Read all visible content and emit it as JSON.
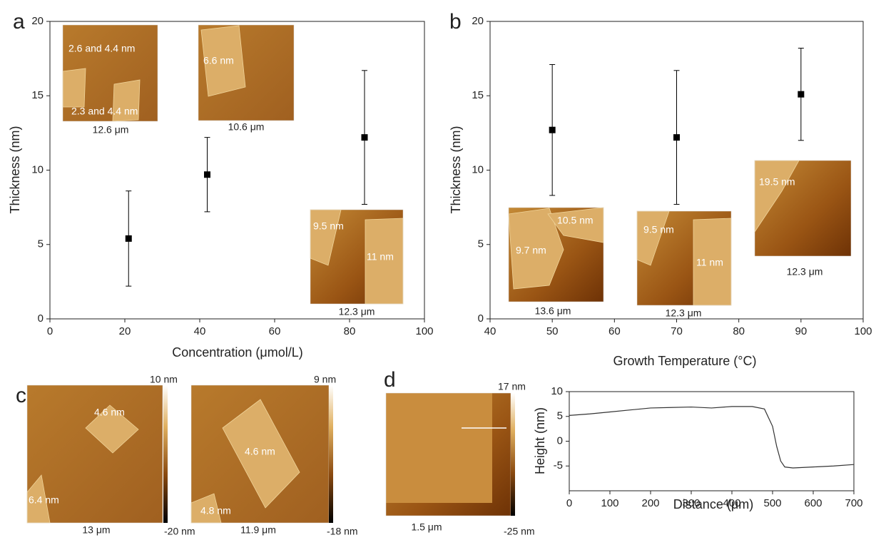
{
  "panel_labels": [
    "a",
    "b",
    "c",
    "d"
  ],
  "chart_data": [
    {
      "type": "scatter",
      "xlabel": "Concentration (μmol/L)",
      "ylabel": "Thickness (nm)",
      "x": [
        21,
        42,
        84
      ],
      "values": [
        5.4,
        9.7,
        12.2
      ],
      "errors": [
        3.2,
        2.5,
        4.5
      ],
      "color": "#000000",
      "xlim": [
        0,
        100
      ],
      "ylim": [
        0,
        20
      ],
      "xticks": [
        0,
        20,
        40,
        60,
        80,
        100
      ],
      "yticks": [
        0,
        5,
        10,
        15,
        20
      ]
    },
    {
      "type": "scatter",
      "xlabel": "Growth Temperature (°C)",
      "ylabel": "Thickness (nm)",
      "x": [
        50,
        70,
        90
      ],
      "values": [
        12.7,
        12.2,
        15.1
      ],
      "errors": [
        4.4,
        4.5,
        3.1
      ],
      "color": "#000000",
      "xlim": [
        40,
        100
      ],
      "ylim": [
        0,
        20
      ],
      "xticks": [
        40,
        50,
        60,
        70,
        80,
        90,
        100
      ],
      "yticks": [
        0,
        5,
        10,
        15,
        20
      ]
    },
    {
      "type": "line",
      "xlabel": "Distance (μm)",
      "ylabel": "Height (nm)",
      "x": [
        0,
        50,
        100,
        150,
        200,
        250,
        300,
        350,
        400,
        450,
        480,
        500,
        510,
        520,
        530,
        550,
        600,
        650,
        700
      ],
      "values": [
        5.2,
        5.5,
        5.9,
        6.3,
        6.7,
        6.8,
        6.9,
        6.7,
        7.0,
        7.0,
        6.5,
        3.0,
        -1.0,
        -4.0,
        -5.2,
        -5.4,
        -5.2,
        -5.0,
        -4.7
      ],
      "color": "#333333",
      "xlim": [
        0,
        700
      ],
      "ylim": [
        -10,
        10
      ],
      "xticks": [
        0,
        100,
        200,
        300,
        400,
        500,
        600,
        700
      ],
      "yticks": [
        -5,
        0,
        5,
        10
      ]
    }
  ],
  "images": [
    {
      "labels": [
        "2.6 and 4.4 nm",
        "2.3 and 4.4 nm"
      ],
      "scale": "12.6 μm"
    },
    {
      "labels": [
        "6.6 nm"
      ],
      "scale": "10.6 μm"
    },
    {
      "labels": [
        "9.5 nm",
        "11 nm"
      ],
      "scale": "12.3 μm"
    },
    {
      "labels": [
        "10.5 nm",
        "9.7 nm"
      ],
      "scale": "13.6 μm"
    },
    {
      "labels": [
        "9.5 nm",
        "11 nm"
      ],
      "scale": "12.3 μm"
    },
    {
      "labels": [
        "19.5 nm"
      ],
      "scale": "12.3 μm"
    },
    {
      "labels": [
        "4.6 nm",
        "6.4 nm"
      ],
      "scale": "13 μm",
      "colorbar": [
        "10 nm",
        "-20 nm"
      ]
    },
    {
      "labels": [
        "4.6 nm",
        "4.8 nm"
      ],
      "scale": "11.9 μm",
      "colorbar": [
        "9 nm",
        "-18 nm"
      ]
    },
    {
      "labels": [],
      "scale": "1.5 μm",
      "colorbar": [
        "17 nm",
        "-25 nm"
      ]
    }
  ]
}
